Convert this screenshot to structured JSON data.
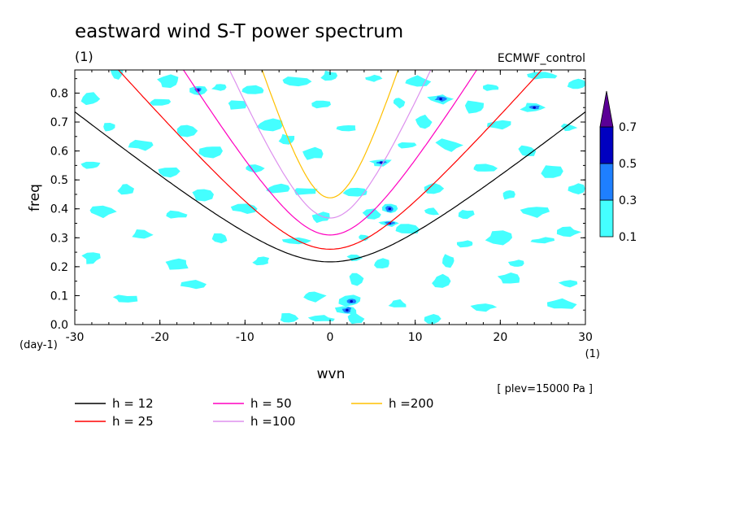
{
  "chart_data": {
    "type": "heatmap",
    "title": "eastward wind S-T power spectrum",
    "subtitle": "(1)",
    "experiment": "ECMWF_control",
    "xlabel": "wvn",
    "ylabel": "freq",
    "x_units": "(1)",
    "y_units": "(day-1)",
    "xlim": [
      -30,
      30
    ],
    "ylim": [
      0,
      0.88
    ],
    "x_ticks": [
      "-30",
      "-20",
      "-10",
      "0",
      "10",
      "20",
      "30"
    ],
    "x_tick_values": [
      -30,
      -20,
      -10,
      0,
      10,
      20,
      30
    ],
    "y_ticks": [
      "0.0",
      "0.1",
      "0.2",
      "0.3",
      "0.4",
      "0.5",
      "0.6",
      "0.7",
      "0.8"
    ],
    "y_tick_values": [
      0,
      0.1,
      0.2,
      0.3,
      0.4,
      0.5,
      0.6,
      0.7,
      0.8
    ],
    "annotation": "[ plev=15000 Pa ]",
    "colorbar": {
      "levels": [
        "0.1",
        "0.3",
        "0.5",
        "0.7"
      ],
      "level_values": [
        0.1,
        0.3,
        0.5,
        0.7
      ],
      "colors": [
        "#44ffff",
        "#1e7fff",
        "#0000c0",
        "#5b0096"
      ],
      "extend": "max"
    },
    "patches": [
      {
        "x": -25,
        "f": 0.87,
        "level": 1
      },
      {
        "x": -19,
        "f": 0.84,
        "level": 1
      },
      {
        "x": -15.5,
        "f": 0.81,
        "level": 2
      },
      {
        "x": -13,
        "f": 0.82,
        "level": 1
      },
      {
        "x": -9,
        "f": 0.81,
        "level": 1
      },
      {
        "x": -4,
        "f": 0.84,
        "level": 1
      },
      {
        "x": 0,
        "f": 0.86,
        "level": 1
      },
      {
        "x": 5,
        "f": 0.85,
        "level": 1
      },
      {
        "x": 10,
        "f": 0.84,
        "level": 1
      },
      {
        "x": 13,
        "f": 0.78,
        "level": 2
      },
      {
        "x": 19,
        "f": 0.82,
        "level": 1
      },
      {
        "x": 25,
        "f": 0.86,
        "level": 1
      },
      {
        "x": 29,
        "f": 0.83,
        "level": 1
      },
      {
        "x": -28,
        "f": 0.78,
        "level": 1
      },
      {
        "x": -20,
        "f": 0.77,
        "level": 1
      },
      {
        "x": -11,
        "f": 0.76,
        "level": 1
      },
      {
        "x": -1,
        "f": 0.76,
        "level": 1
      },
      {
        "x": 8,
        "f": 0.77,
        "level": 1
      },
      {
        "x": 17,
        "f": 0.75,
        "level": 1
      },
      {
        "x": 24,
        "f": 0.75,
        "level": 2
      },
      {
        "x": -26,
        "f": 0.68,
        "level": 1
      },
      {
        "x": -17,
        "f": 0.67,
        "level": 1
      },
      {
        "x": -7,
        "f": 0.69,
        "level": 1
      },
      {
        "x": 2,
        "f": 0.68,
        "level": 1
      },
      {
        "x": 11,
        "f": 0.7,
        "level": 1
      },
      {
        "x": 20,
        "f": 0.69,
        "level": 1
      },
      {
        "x": 28,
        "f": 0.68,
        "level": 1
      },
      {
        "x": -22,
        "f": 0.62,
        "level": 1
      },
      {
        "x": -14,
        "f": 0.6,
        "level": 1
      },
      {
        "x": -5,
        "f": 0.64,
        "level": 1
      },
      {
        "x": -2,
        "f": 0.59,
        "level": 1
      },
      {
        "x": 14,
        "f": 0.62,
        "level": 1
      },
      {
        "x": 23,
        "f": 0.6,
        "level": 1
      },
      {
        "x": -28,
        "f": 0.55,
        "level": 1
      },
      {
        "x": -19,
        "f": 0.53,
        "level": 1
      },
      {
        "x": -9,
        "f": 0.54,
        "level": 1
      },
      {
        "x": 6,
        "f": 0.56,
        "level": 2
      },
      {
        "x": 18,
        "f": 0.54,
        "level": 1
      },
      {
        "x": 26,
        "f": 0.53,
        "level": 1
      },
      {
        "x": -24,
        "f": 0.47,
        "level": 1
      },
      {
        "x": -15,
        "f": 0.45,
        "level": 1
      },
      {
        "x": -6,
        "f": 0.47,
        "level": 1
      },
      {
        "x": 3,
        "f": 0.46,
        "level": 1
      },
      {
        "x": 12,
        "f": 0.47,
        "level": 1
      },
      {
        "x": 21,
        "f": 0.45,
        "level": 1
      },
      {
        "x": 29,
        "f": 0.47,
        "level": 1
      },
      {
        "x": -27,
        "f": 0.39,
        "level": 1
      },
      {
        "x": -18,
        "f": 0.38,
        "level": 1
      },
      {
        "x": -10,
        "f": 0.4,
        "level": 1
      },
      {
        "x": -1,
        "f": 0.37,
        "level": 1
      },
      {
        "x": 5,
        "f": 0.38,
        "level": 1
      },
      {
        "x": 7,
        "f": 0.4,
        "level": 2
      },
      {
        "x": 7,
        "f": 0.35,
        "level": 2
      },
      {
        "x": 12,
        "f": 0.39,
        "level": 1
      },
      {
        "x": 16,
        "f": 0.38,
        "level": 1
      },
      {
        "x": 24,
        "f": 0.39,
        "level": 1
      },
      {
        "x": -22,
        "f": 0.31,
        "level": 1
      },
      {
        "x": -13,
        "f": 0.3,
        "level": 1
      },
      {
        "x": -4,
        "f": 0.29,
        "level": 1
      },
      {
        "x": 4,
        "f": 0.3,
        "level": 1
      },
      {
        "x": 9,
        "f": 0.33,
        "level": 1
      },
      {
        "x": 20,
        "f": 0.3,
        "level": 1
      },
      {
        "x": 28,
        "f": 0.32,
        "level": 1
      },
      {
        "x": -28,
        "f": 0.23,
        "level": 1
      },
      {
        "x": -18,
        "f": 0.21,
        "level": 1
      },
      {
        "x": -8,
        "f": 0.22,
        "level": 1
      },
      {
        "x": 3,
        "f": 0.23,
        "level": 1
      },
      {
        "x": 6,
        "f": 0.21,
        "level": 1
      },
      {
        "x": 14,
        "f": 0.22,
        "level": 1
      },
      {
        "x": 22,
        "f": 0.21,
        "level": 1
      },
      {
        "x": 3,
        "f": 0.16,
        "level": 1
      },
      {
        "x": 13,
        "f": 0.15,
        "level": 1
      },
      {
        "x": 21,
        "f": 0.16,
        "level": 1
      },
      {
        "x": 28,
        "f": 0.14,
        "level": 1
      },
      {
        "x": -2,
        "f": 0.1,
        "level": 1
      },
      {
        "x": 2.5,
        "f": 0.08,
        "level": 2
      },
      {
        "x": 2,
        "f": 0.05,
        "level": 2
      },
      {
        "x": 8,
        "f": 0.07,
        "level": 1
      },
      {
        "x": 18,
        "f": 0.06,
        "level": 1
      },
      {
        "x": 27,
        "f": 0.07,
        "level": 1
      },
      {
        "x": -5,
        "f": 0.02,
        "level": 1
      },
      {
        "x": -1,
        "f": 0.02,
        "level": 1
      },
      {
        "x": 3,
        "f": 0.02,
        "level": 1
      },
      {
        "x": 12,
        "f": 0.02,
        "level": 1
      },
      {
        "x": -16,
        "f": 0.14,
        "level": 1
      },
      {
        "x": -24,
        "f": 0.09,
        "level": 1
      },
      {
        "x": 16,
        "f": 0.28,
        "level": 1
      },
      {
        "x": -3,
        "f": 0.46,
        "level": 1
      },
      {
        "x": 9,
        "f": 0.62,
        "level": 1
      },
      {
        "x": 25,
        "f": 0.29,
        "level": 1
      }
    ],
    "series": [
      {
        "name": "h = 12",
        "h": 12,
        "color": "#000000"
      },
      {
        "name": "h = 25",
        "h": 25,
        "color": "#ff0000"
      },
      {
        "name": "h = 50",
        "h": 50,
        "color": "#ff00c0"
      },
      {
        "name": "h =100",
        "h": 100,
        "color": "#dd90ee"
      },
      {
        "name": "h =200",
        "h": 200,
        "color": "#ffc000"
      }
    ],
    "legend": "below"
  }
}
